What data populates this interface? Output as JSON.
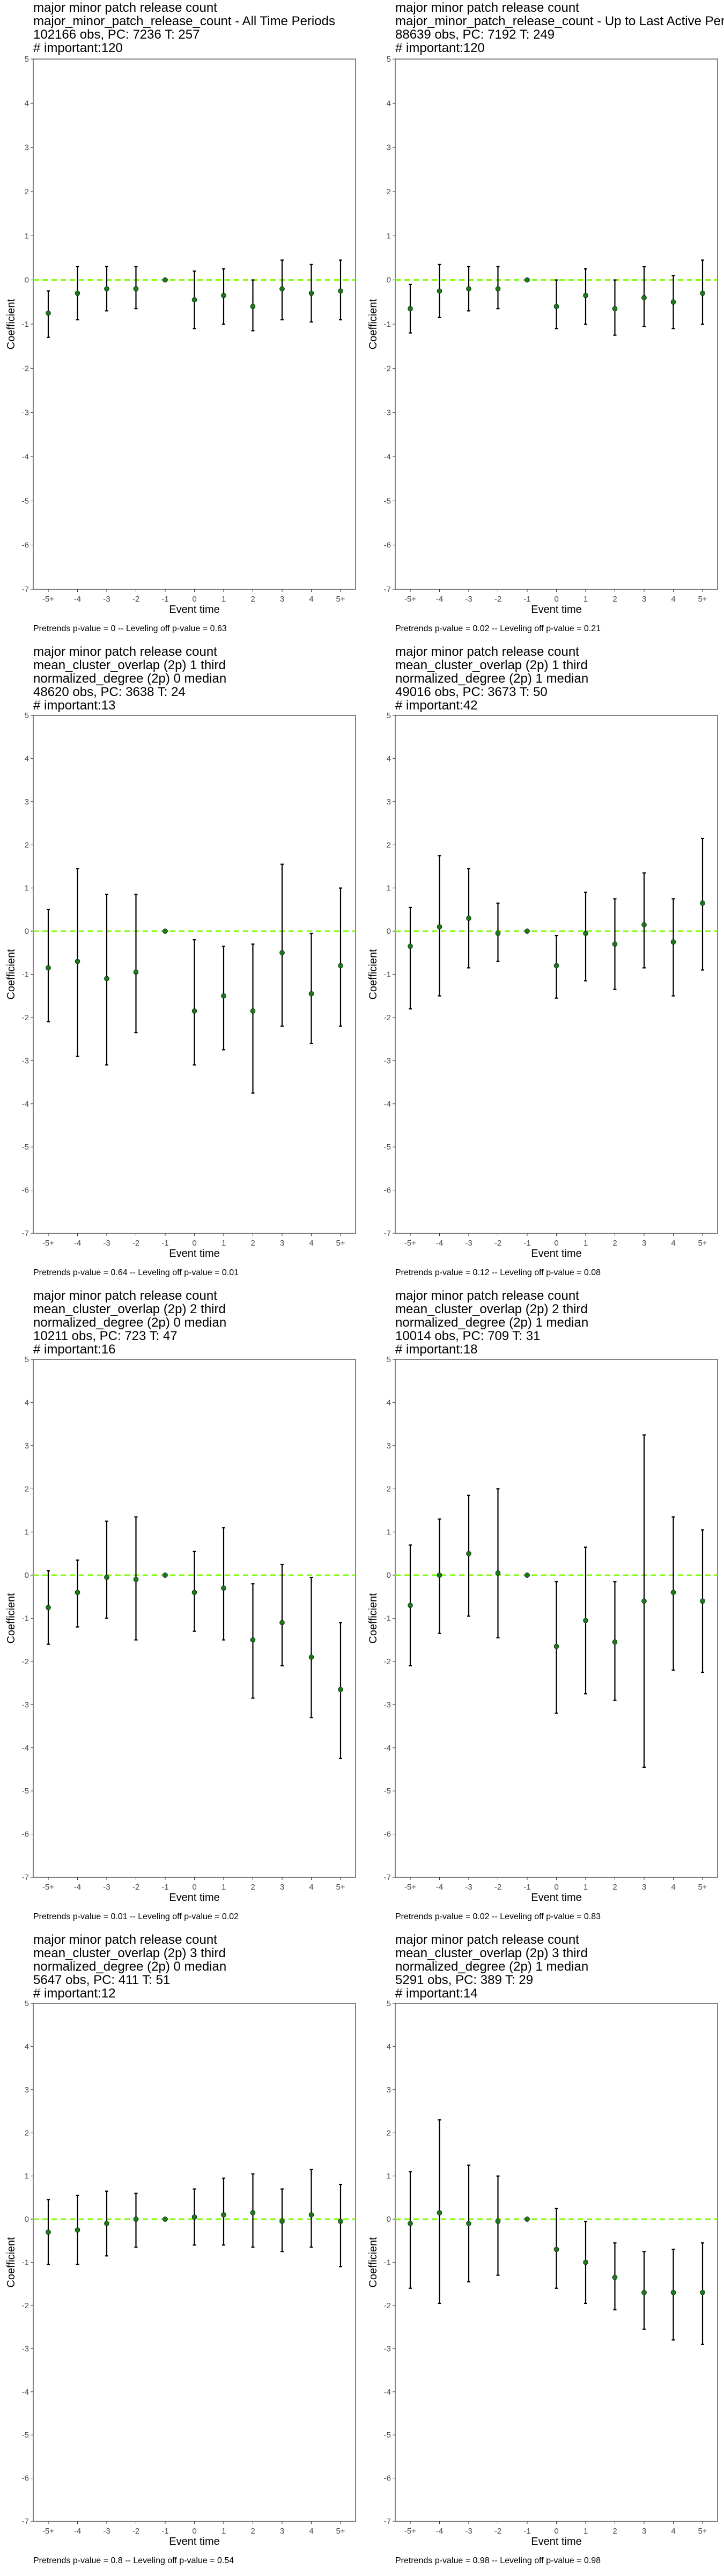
{
  "chart_data": [
    {
      "type": "scatter",
      "title_lines": [
        "major minor patch release count",
        "major_minor_patch_release_count - All Time Periods",
        "102166 obs, PC: 7236 T: 257",
        "# important:120"
      ],
      "xlabel": "Event time",
      "ylabel": "Coefficient",
      "categories": [
        "-5+",
        "-4",
        "-3",
        "-2",
        "-1",
        "0",
        "1",
        "2",
        "3",
        "4",
        "5+"
      ],
      "series": [
        {
          "estimate": [
            -0.75,
            -0.3,
            -0.2,
            -0.2,
            0.0,
            -0.45,
            -0.35,
            -0.6,
            -0.2,
            -0.3,
            -0.25
          ],
          "ci_low": [
            -1.3,
            -0.9,
            -0.7,
            -0.65,
            0.0,
            -1.1,
            -1.0,
            -1.15,
            -0.9,
            -0.95,
            -0.9
          ],
          "ci_high": [
            -0.25,
            0.3,
            0.3,
            0.3,
            0.0,
            0.2,
            0.25,
            0.0,
            0.45,
            0.35,
            0.45
          ]
        }
      ],
      "ylim": [
        -7,
        5
      ],
      "yticks": [
        -7,
        -6,
        -5,
        -4,
        -3,
        -2,
        -1,
        0,
        1,
        2,
        3,
        4,
        5
      ],
      "reference_line": {
        "y": 0,
        "color": "#7CFC00",
        "style": "dashed"
      },
      "grid": false,
      "footnote": "Pretrends p-value = 0 -- Leveling off p-value = 0.63"
    },
    {
      "type": "scatter",
      "title_lines": [
        "major minor patch release count",
        "major_minor_patch_release_count - Up to Last Active Period",
        "88639 obs, PC: 7192 T: 249",
        "# important:120"
      ],
      "xlabel": "Event time",
      "ylabel": "Coefficient",
      "categories": [
        "-5+",
        "-4",
        "-3",
        "-2",
        "-1",
        "0",
        "1",
        "2",
        "3",
        "4",
        "5+"
      ],
      "series": [
        {
          "estimate": [
            -0.65,
            -0.25,
            -0.2,
            -0.2,
            0.0,
            -0.6,
            -0.35,
            -0.65,
            -0.4,
            -0.5,
            -0.3
          ],
          "ci_low": [
            -1.2,
            -0.85,
            -0.7,
            -0.65,
            0.0,
            -1.1,
            -1.0,
            -1.25,
            -1.05,
            -1.1,
            -1.0
          ],
          "ci_high": [
            -0.1,
            0.35,
            0.3,
            0.3,
            0.0,
            0.0,
            0.25,
            0.0,
            0.3,
            0.1,
            0.45
          ]
        }
      ],
      "ylim": [
        -7,
        5
      ],
      "yticks": [
        -7,
        -6,
        -5,
        -4,
        -3,
        -2,
        -1,
        0,
        1,
        2,
        3,
        4,
        5
      ],
      "reference_line": {
        "y": 0,
        "color": "#7CFC00",
        "style": "dashed"
      },
      "grid": false,
      "footnote": "Pretrends p-value = 0.02 -- Leveling off p-value = 0.21"
    },
    {
      "type": "scatter",
      "title_lines": [
        "major minor patch release count",
        "mean_cluster_overlap (2p) 1 third",
        "normalized_degree (2p) 0 median",
        "48620 obs, PC: 3638 T: 24",
        "# important:13"
      ],
      "xlabel": "Event time",
      "ylabel": "Coefficient",
      "categories": [
        "-5+",
        "-4",
        "-3",
        "-2",
        "-1",
        "0",
        "1",
        "2",
        "3",
        "4",
        "5+"
      ],
      "series": [
        {
          "estimate": [
            -0.85,
            -0.7,
            -1.1,
            -0.95,
            0.0,
            -1.85,
            -1.5,
            -1.85,
            -0.5,
            -1.45,
            -0.8
          ],
          "ci_low": [
            -2.1,
            -2.9,
            -3.1,
            -2.35,
            0.0,
            -3.1,
            -2.75,
            -3.75,
            -2.2,
            -2.6,
            -2.2
          ],
          "ci_high": [
            0.5,
            1.45,
            0.85,
            0.85,
            0.0,
            -0.2,
            -0.35,
            -0.3,
            1.55,
            -0.05,
            1.0
          ]
        }
      ],
      "ylim": [
        -7,
        5
      ],
      "yticks": [
        -7,
        -6,
        -5,
        -4,
        -3,
        -2,
        -1,
        0,
        1,
        2,
        3,
        4,
        5
      ],
      "reference_line": {
        "y": 0,
        "color": "#7CFC00",
        "style": "dashed"
      },
      "grid": false,
      "footnote": "Pretrends p-value = 0.64 -- Leveling off p-value = 0.01"
    },
    {
      "type": "scatter",
      "title_lines": [
        "major minor patch release count",
        "mean_cluster_overlap (2p) 1 third",
        "normalized_degree (2p) 1 median",
        "49016 obs, PC: 3673 T: 50",
        "# important:42"
      ],
      "xlabel": "Event time",
      "ylabel": "Coefficient",
      "categories": [
        "-5+",
        "-4",
        "-3",
        "-2",
        "-1",
        "0",
        "1",
        "2",
        "3",
        "4",
        "5+"
      ],
      "series": [
        {
          "estimate": [
            -0.35,
            0.1,
            0.3,
            -0.05,
            0.0,
            -0.8,
            -0.05,
            -0.3,
            0.15,
            -0.25,
            0.65
          ],
          "ci_low": [
            -1.8,
            -1.5,
            -0.85,
            -0.7,
            0.0,
            -1.55,
            -1.15,
            -1.35,
            -0.85,
            -1.5,
            -0.9
          ],
          "ci_high": [
            0.55,
            1.75,
            1.45,
            0.65,
            0.0,
            -0.1,
            0.9,
            0.75,
            1.35,
            0.75,
            2.15
          ]
        }
      ],
      "ylim": [
        -7,
        5
      ],
      "yticks": [
        -7,
        -6,
        -5,
        -4,
        -3,
        -2,
        -1,
        0,
        1,
        2,
        3,
        4,
        5
      ],
      "reference_line": {
        "y": 0,
        "color": "#7CFC00",
        "style": "dashed"
      },
      "grid": false,
      "footnote": "Pretrends p-value = 0.12 -- Leveling off p-value = 0.08"
    },
    {
      "type": "scatter",
      "title_lines": [
        "major minor patch release count",
        "mean_cluster_overlap (2p) 2 third",
        "normalized_degree (2p) 0 median",
        "10211 obs, PC: 723 T: 47",
        "# important:16"
      ],
      "xlabel": "Event time",
      "ylabel": "Coefficient",
      "categories": [
        "-5+",
        "-4",
        "-3",
        "-2",
        "-1",
        "0",
        "1",
        "2",
        "3",
        "4",
        "5+"
      ],
      "series": [
        {
          "estimate": [
            -0.75,
            -0.4,
            -0.05,
            -0.1,
            0.0,
            -0.4,
            -0.3,
            -1.5,
            -1.1,
            -1.9,
            -2.65
          ],
          "ci_low": [
            -1.6,
            -1.2,
            -1.0,
            -1.5,
            0.0,
            -1.3,
            -1.5,
            -2.85,
            -2.1,
            -3.3,
            -4.25
          ],
          "ci_high": [
            0.1,
            0.35,
            1.25,
            1.35,
            0.0,
            0.55,
            1.1,
            -0.2,
            0.25,
            -0.05,
            -1.1
          ]
        }
      ],
      "ylim": [
        -7,
        5
      ],
      "yticks": [
        -7,
        -6,
        -5,
        -4,
        -3,
        -2,
        -1,
        0,
        1,
        2,
        3,
        4,
        5
      ],
      "reference_line": {
        "y": 0,
        "color": "#7CFC00",
        "style": "dashed"
      },
      "grid": false,
      "footnote": "Pretrends p-value = 0.01 -- Leveling off p-value = 0.02"
    },
    {
      "type": "scatter",
      "title_lines": [
        "major minor patch release count",
        "mean_cluster_overlap (2p) 2 third",
        "normalized_degree (2p) 1 median",
        "10014 obs, PC: 709 T: 31",
        "# important:18"
      ],
      "xlabel": "Event time",
      "ylabel": "Coefficient",
      "categories": [
        "-5+",
        "-4",
        "-3",
        "-2",
        "-1",
        "0",
        "1",
        "2",
        "3",
        "4",
        "5+"
      ],
      "series": [
        {
          "estimate": [
            -0.7,
            0.0,
            0.5,
            0.05,
            0.0,
            -1.65,
            -1.05,
            -1.55,
            -0.6,
            -0.4,
            -0.6
          ],
          "ci_low": [
            -2.1,
            -1.35,
            -0.95,
            -1.45,
            0.0,
            -3.2,
            -2.75,
            -2.9,
            -4.45,
            -2.2,
            -2.25
          ],
          "ci_high": [
            0.7,
            1.3,
            1.85,
            2.0,
            0.0,
            -0.15,
            0.65,
            -0.15,
            3.25,
            1.35,
            1.05
          ]
        }
      ],
      "ylim": [
        -7,
        5
      ],
      "yticks": [
        -7,
        -6,
        -5,
        -4,
        -3,
        -2,
        -1,
        0,
        1,
        2,
        3,
        4,
        5
      ],
      "reference_line": {
        "y": 0,
        "color": "#7CFC00",
        "style": "dashed"
      },
      "grid": false,
      "footnote": "Pretrends p-value = 0.02 -- Leveling off p-value = 0.83"
    },
    {
      "type": "scatter",
      "title_lines": [
        "major minor patch release count",
        "mean_cluster_overlap (2p) 3 third",
        "normalized_degree (2p) 0 median",
        "5647 obs, PC: 411 T: 51",
        "# important:12"
      ],
      "xlabel": "Event time",
      "ylabel": "Coefficient",
      "categories": [
        "-5+",
        "-4",
        "-3",
        "-2",
        "-1",
        "0",
        "1",
        "2",
        "3",
        "4",
        "5+"
      ],
      "series": [
        {
          "estimate": [
            -0.3,
            -0.25,
            -0.1,
            0.0,
            0.0,
            0.05,
            0.1,
            0.15,
            -0.05,
            0.1,
            -0.05
          ],
          "ci_low": [
            -1.05,
            -1.05,
            -0.85,
            -0.65,
            0.0,
            -0.6,
            -0.6,
            -0.65,
            -0.75,
            -0.65,
            -1.1
          ],
          "ci_high": [
            0.45,
            0.55,
            0.65,
            0.6,
            0.0,
            0.7,
            0.95,
            1.05,
            0.7,
            1.15,
            0.8
          ]
        }
      ],
      "ylim": [
        -7,
        5
      ],
      "yticks": [
        -7,
        -6,
        -5,
        -4,
        -3,
        -2,
        -1,
        0,
        1,
        2,
        3,
        4,
        5
      ],
      "reference_line": {
        "y": 0,
        "color": "#7CFC00",
        "style": "dashed"
      },
      "grid": false,
      "footnote": "Pretrends p-value = 0.8 -- Leveling off p-value = 0.54"
    },
    {
      "type": "scatter",
      "title_lines": [
        "major minor patch release count",
        "mean_cluster_overlap (2p) 3 third",
        "normalized_degree (2p) 1 median",
        "5291 obs, PC: 389 T: 29",
        "# important:14"
      ],
      "xlabel": "Event time",
      "ylabel": "Coefficient",
      "categories": [
        "-5+",
        "-4",
        "-3",
        "-2",
        "-1",
        "0",
        "1",
        "2",
        "3",
        "4",
        "5+"
      ],
      "series": [
        {
          "estimate": [
            -0.1,
            0.15,
            -0.1,
            -0.05,
            0.0,
            -0.7,
            -1.0,
            -1.35,
            -1.7,
            -1.7,
            -1.7
          ],
          "ci_low": [
            -1.6,
            -1.95,
            -1.45,
            -1.3,
            0.0,
            -1.6,
            -1.95,
            -2.1,
            -2.55,
            -2.8,
            -2.9
          ],
          "ci_high": [
            1.1,
            2.3,
            1.25,
            1.0,
            0.0,
            0.25,
            -0.05,
            -0.55,
            -0.75,
            -0.7,
            -0.55
          ]
        }
      ],
      "ylim": [
        -7,
        5
      ],
      "yticks": [
        -7,
        -6,
        -5,
        -4,
        -3,
        -2,
        -1,
        0,
        1,
        2,
        3,
        4,
        5
      ],
      "reference_line": {
        "y": 0,
        "color": "#7CFC00",
        "style": "dashed"
      },
      "grid": false,
      "footnote": "Pretrends p-value = 0.98 -- Leveling off p-value = 0.98"
    }
  ]
}
